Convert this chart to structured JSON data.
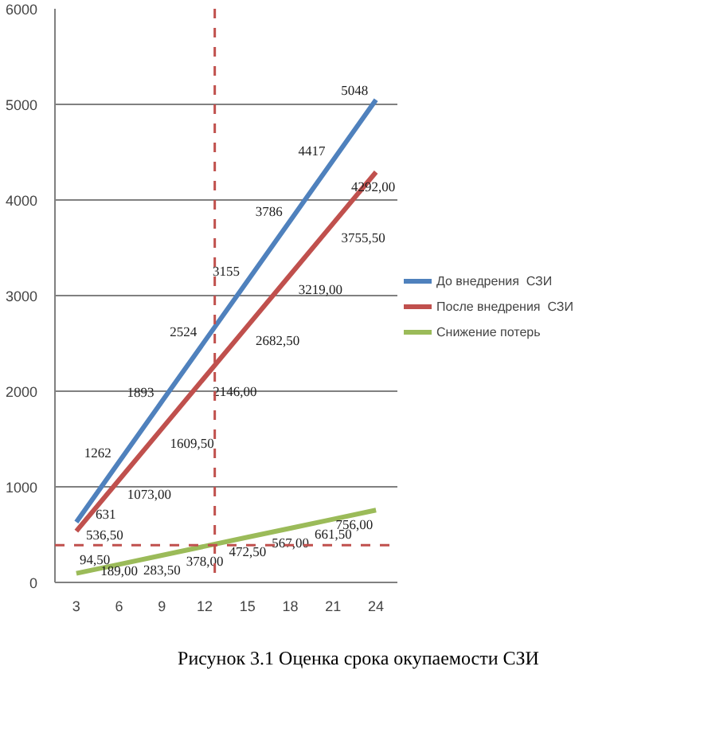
{
  "chart_data": {
    "type": "line",
    "title": "Рисунок 3.1 Оценка срока окупаемости СЗИ",
    "x": [
      3,
      6,
      9,
      12,
      15,
      18,
      21,
      24
    ],
    "xlim": [
      1.5,
      25.5
    ],
    "xticks": [
      3,
      6,
      9,
      12,
      15,
      18,
      21,
      24
    ],
    "ylim": [
      0,
      6000
    ],
    "yticks": [
      0,
      1000,
      2000,
      3000,
      4000,
      5000,
      6000
    ],
    "grid": "y",
    "legend": "right",
    "marker": "none",
    "line_style": "solid",
    "series": [
      {
        "name": "До внедрения  СЗИ",
        "color": "#4f81bd",
        "values": [
          631,
          1262,
          1893,
          2524,
          3155,
          3786,
          4417,
          5048
        ],
        "value_labels": [
          "631",
          "1262",
          "1893",
          "2524",
          "3155",
          "3786",
          "4417",
          "5048"
        ]
      },
      {
        "name": "После внедрения  СЗИ",
        "color": "#c0504d",
        "values": [
          536.5,
          1073.0,
          1609.5,
          2146.0,
          2682.5,
          3219.0,
          3755.5,
          4292.0
        ],
        "value_labels": [
          "536,50",
          "1073,00",
          "1609,50",
          "2146,00",
          "2682,50",
          "3219,00",
          "3755,50",
          "4292,00"
        ]
      },
      {
        "name": "Снижение потерь",
        "color": "#9bbb59",
        "values": [
          94.5,
          189.0,
          283.5,
          378.0,
          472.5,
          567.0,
          661.5,
          756.0
        ],
        "value_labels": [
          "94,50",
          "189,00",
          "283,50",
          "378,00",
          "472,50",
          "567,00",
          "661,50",
          "756,00"
        ]
      }
    ],
    "ref_lines": [
      {
        "axis": "x",
        "value": 12.7,
        "color": "#c0504d",
        "line_style": "dashed"
      },
      {
        "axis": "y",
        "value": 390,
        "color": "#c0504d",
        "line_style": "dashed"
      }
    ]
  }
}
